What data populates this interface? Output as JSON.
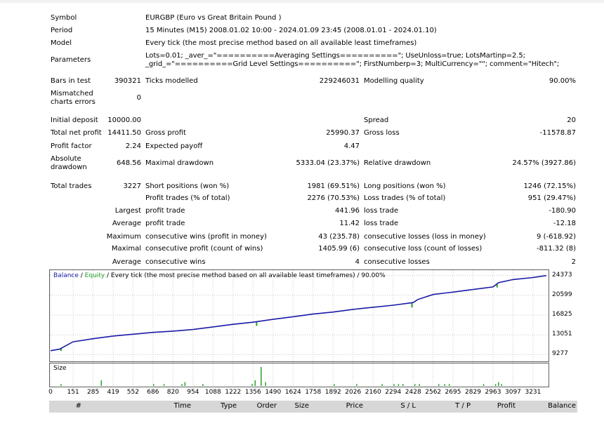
{
  "summary": {
    "symbol_label": "Symbol",
    "symbol_value": "EURGBP (Euro vs Great Britain Pound )",
    "period_label": "Period",
    "period_value": "15 Minutes (M15) 2008.01.02 10:00 - 2024.01.09 23:45 (2008.01.01 - 2024.01.10)",
    "model_label": "Model",
    "model_value": "Every tick (the most precise method based on all available least timeframes)",
    "parameters_label": "Parameters",
    "parameters_value": "Lots=0.01; _aver_=\"==========Averaging Settings==========\"; UseUnloss=true; LotsMartinp=2.5; _grid_=\"==========Grid Level Settings==========\"; FirstNumberp=3; MultiCurrency=\"\"; comment=\"Hitech\";",
    "bars_label": "Bars in test",
    "bars_value": "390321",
    "ticks_label": "Ticks modelled",
    "ticks_value": "229246031",
    "quality_label": "Modelling quality",
    "quality_value": "90.00%",
    "mismatch_label": "Mismatched charts errors",
    "mismatch_value": "0",
    "deposit_label": "Initial deposit",
    "deposit_value": "10000.00",
    "spread_label": "Spread",
    "spread_value": "20",
    "netprofit_label": "Total net profit",
    "netprofit_value": "14411.50",
    "grossprofit_label": "Gross profit",
    "grossprofit_value": "25990.37",
    "grossloss_label": "Gross loss",
    "grossloss_value": "-11578.87",
    "pf_label": "Profit factor",
    "pf_value": "2.24",
    "payoff_label": "Expected payoff",
    "payoff_value": "4.47",
    "absdd_label": "Absolute drawdown",
    "absdd_value": "648.56",
    "maxdd_label": "Maximal drawdown",
    "maxdd_value": "5333.04 (23.37%)",
    "reldd_label": "Relative drawdown",
    "reldd_value": "24.57% (3927.86)",
    "trades_label": "Total trades",
    "trades_value": "3227",
    "short_label": "Short positions (won %)",
    "short_value": "1981 (69.51%)",
    "long_label": "Long positions (won %)",
    "long_value": "1246 (72.15%)",
    "ptrades_label": "Profit trades (% of total)",
    "ptrades_value": "2276 (70.53%)",
    "ltrades_label": "Loss trades (% of total)",
    "ltrades_value": "951 (29.47%)",
    "largest_label": "Largest",
    "largest_profit_label": "profit trade",
    "largest_profit_value": "441.96",
    "largest_loss_label": "loss trade",
    "largest_loss_value": "-180.90",
    "average_label": "Average",
    "average_profit_label": "profit trade",
    "average_profit_value": "11.42",
    "average_loss_label": "loss trade",
    "average_loss_value": "-12.18",
    "maximum_label": "Maximum",
    "maxwins_label": "consecutive wins (profit in money)",
    "maxwins_value": "43 (235.78)",
    "maxlosses_label": "consecutive losses (loss in money)",
    "maxlosses_value": "9 (-618.92)",
    "maximal_label": "Maximal",
    "maxprofit_label": "consecutive profit (count of wins)",
    "maxprofit_value": "1405.99 (6)",
    "maxloss_label": "consecutive loss (count of losses)",
    "maxloss_value": "-811.32 (8)",
    "avg2_label": "Average",
    "avgwins_label": "consecutive wins",
    "avgwins_value": "4",
    "avglosses_label": "consecutive losses",
    "avglosses_value": "2"
  },
  "chart_data": {
    "type": "line",
    "legend_balance": "Balance",
    "legend_sep": " / ",
    "legend_equity": "Equity",
    "legend_rest": " / Every tick (the most precise method based on all available least timeframes) / 90.00%",
    "series": [
      {
        "name": "Balance",
        "color": "#1a1aa8",
        "x": [
          0,
          60,
          151,
          285,
          419,
          552,
          686,
          820,
          954,
          1088,
          1222,
          1356,
          1490,
          1624,
          1758,
          1892,
          2026,
          2160,
          2294,
          2428,
          2460,
          2562,
          2695,
          2829,
          2963,
          3000,
          3097,
          3231,
          3320
        ],
        "values": [
          10000,
          10300,
          11700,
          12300,
          12800,
          13150,
          13500,
          13750,
          14050,
          14550,
          15050,
          15450,
          16000,
          16500,
          17000,
          17400,
          17900,
          18300,
          18700,
          19200,
          19800,
          20750,
          21200,
          21700,
          22200,
          23000,
          23600,
          24000,
          24373
        ]
      },
      {
        "name": "Equity",
        "color": "#2aa02a"
      }
    ],
    "y_ticks": [
      "24373",
      "20599",
      "16825",
      "13051",
      "9277"
    ],
    "y_tick_values": [
      24373,
      20599,
      16825,
      13051,
      9277
    ],
    "ylim": [
      8500,
      25000
    ],
    "xlim": [
      0,
      3330
    ],
    "x_ticks": [
      "0",
      "151",
      "285",
      "419",
      "552",
      "686",
      "820",
      "954",
      "1088",
      "1222",
      "1356",
      "1490",
      "1624",
      "1758",
      "1892",
      "2026",
      "2160",
      "2294",
      "2428",
      "2562",
      "2695",
      "2829",
      "2963",
      "3097",
      "3231"
    ],
    "x_tick_values": [
      0,
      151,
      285,
      419,
      552,
      686,
      820,
      954,
      1088,
      1222,
      1356,
      1490,
      1624,
      1758,
      1892,
      2026,
      2160,
      2294,
      2428,
      2562,
      2695,
      2829,
      2963,
      3097,
      3231
    ],
    "size_label": "Size",
    "size_bars": {
      "x": [
        70,
        340,
        690,
        760,
        880,
        900,
        1020,
        1350,
        1370,
        1410,
        1440,
        1900,
        2050,
        2220,
        2300,
        2330,
        2360,
        2440,
        2470,
        2600,
        2640,
        2670,
        2900,
        2980,
        3000,
        3020
      ],
      "values": [
        1,
        3,
        1,
        1,
        1,
        2,
        1,
        1,
        3,
        10,
        2,
        1,
        1,
        1,
        1,
        1,
        1,
        1,
        1,
        1,
        1,
        1,
        1,
        1,
        2,
        1
      ],
      "ymax": 10,
      "color": "#2aa02a"
    },
    "colors": {
      "grid": "#c8c8c8",
      "frame": "#606060"
    }
  },
  "table": {
    "columns": [
      "#",
      "Time",
      "Type",
      "Order",
      "Size",
      "Price",
      "S / L",
      "T / P",
      "Profit",
      "Balance"
    ]
  }
}
